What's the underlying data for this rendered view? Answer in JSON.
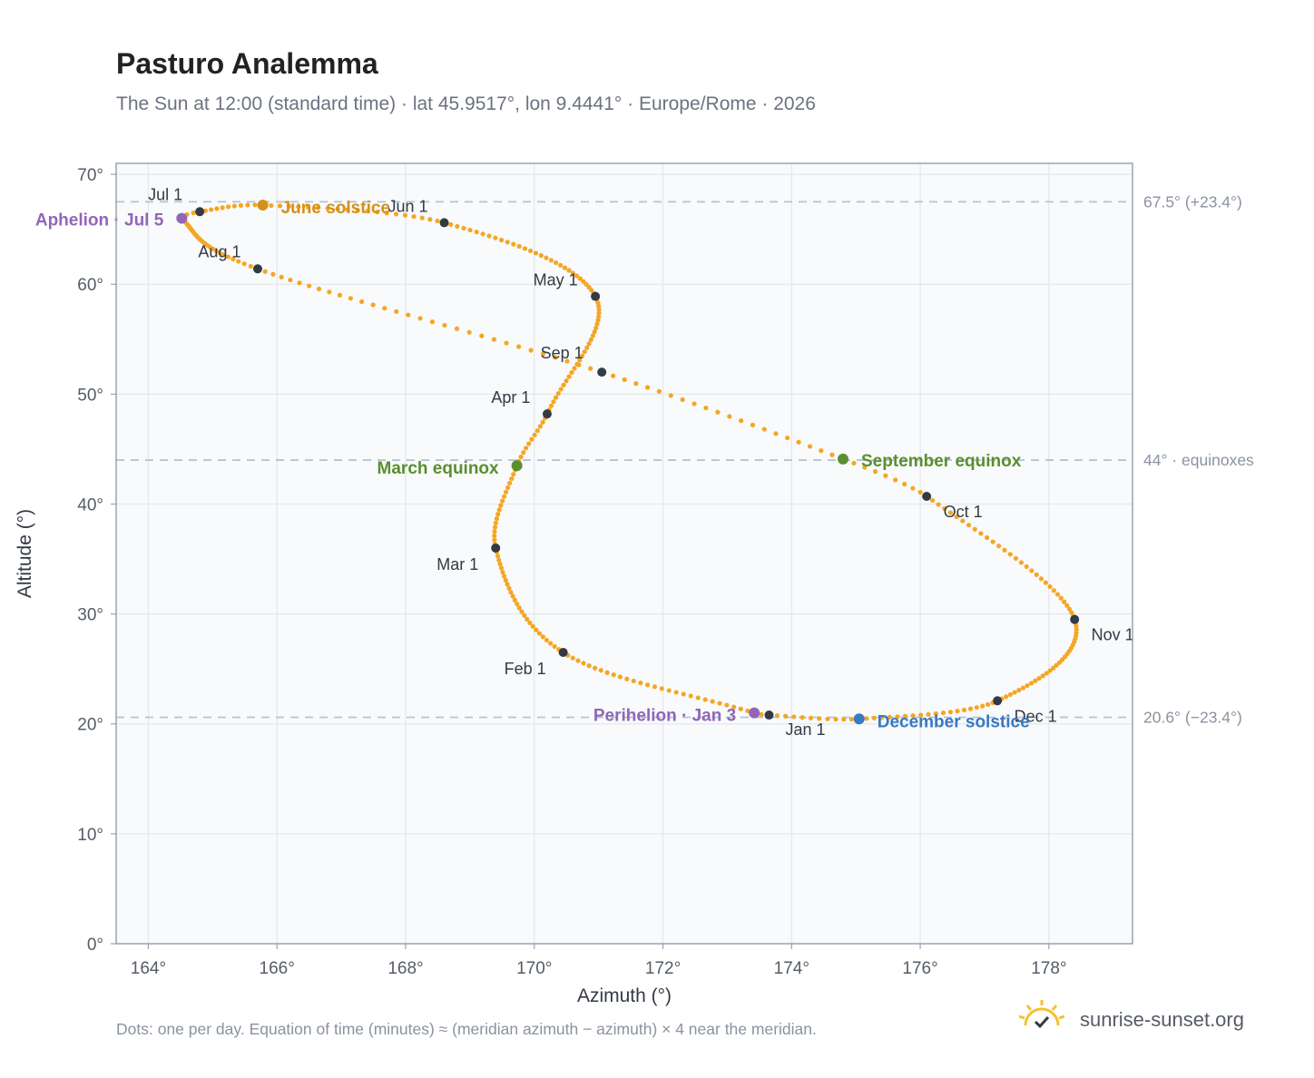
{
  "header": {
    "title": "Pasturo Analemma",
    "subtitle": "The Sun at 12:00 (standard time) · lat 45.9517°, lon 9.4441° · Europe/Rome · 2026"
  },
  "footer": {
    "note": "Dots: one per day. Equation of time (minutes) ≈ (meridian azimuth − azimuth) × 4 near the meridian.",
    "brand": "sunrise-sunset.org",
    "brand_icon": "sun-check-icon"
  },
  "colors": {
    "curve": "#f5a623",
    "month_marker": "#333a44",
    "june_solstice": "#d4901a",
    "december_solstice": "#3a78c0",
    "equinox": "#5a8f2e",
    "apsis": "#9166b8",
    "reference_line": "#b7c3d0",
    "plot_background": "#f8fafc"
  },
  "chart_data": {
    "type": "scatter",
    "title": "Pasturo Analemma",
    "subtitle": "The Sun at 12:00 (standard time) · lat 45.9517°, lon 9.4441° · Europe/Rome · 2026",
    "xlabel": "Azimuth (°)",
    "ylabel": "Altitude (°)",
    "xlim": [
      163.5,
      179.3
    ],
    "ylim": [
      0,
      71
    ],
    "x_ticks": [
      164,
      166,
      168,
      170,
      172,
      174,
      176,
      178
    ],
    "x_tick_labels": [
      "164°",
      "166°",
      "168°",
      "170°",
      "172°",
      "174°",
      "176°",
      "178°"
    ],
    "y_ticks": [
      0,
      10,
      20,
      30,
      40,
      50,
      60,
      70
    ],
    "y_tick_labels": [
      "0°",
      "10°",
      "20°",
      "30°",
      "40°",
      "50°",
      "60°",
      "70°"
    ],
    "grid": true,
    "reference_lines": [
      {
        "y": 67.5,
        "label": "67.5° (+23.4°)"
      },
      {
        "y": 44.0,
        "label": "44° · equinoxes"
      },
      {
        "y": 20.6,
        "label": "20.6° (−23.4°)"
      }
    ],
    "series": [
      {
        "marker": "daily-dot",
        "points": [
          {
            "date": "Jan 1",
            "az": 173.65,
            "alt": 20.8
          },
          {
            "date": "Jan 3",
            "az": 173.42,
            "alt": 21.0
          },
          {
            "date": "Feb 1",
            "az": 170.45,
            "alt": 26.5
          },
          {
            "date": "Mar 1",
            "az": 169.4,
            "alt": 36.0
          },
          {
            "date": "Mar 20",
            "az": 169.73,
            "alt": 43.5
          },
          {
            "date": "Apr 1",
            "az": 170.2,
            "alt": 48.2
          },
          {
            "date": "May 1",
            "az": 170.95,
            "alt": 58.9
          },
          {
            "date": "Jun 1",
            "az": 168.6,
            "alt": 65.6
          },
          {
            "date": "Jun 21",
            "az": 165.78,
            "alt": 67.2
          },
          {
            "date": "Jul 1",
            "az": 164.8,
            "alt": 66.6
          },
          {
            "date": "Jul 5",
            "az": 164.52,
            "alt": 66.0
          },
          {
            "date": "Aug 1",
            "az": 165.7,
            "alt": 61.4
          },
          {
            "date": "Sep 1",
            "az": 171.05,
            "alt": 52.0
          },
          {
            "date": "Sep 22",
            "az": 174.8,
            "alt": 44.1
          },
          {
            "date": "Oct 1",
            "az": 176.1,
            "alt": 40.7
          },
          {
            "date": "Nov 1",
            "az": 178.4,
            "alt": 29.5
          },
          {
            "date": "Dec 1",
            "az": 177.2,
            "alt": 22.1
          },
          {
            "date": "Dec 21",
            "az": 175.05,
            "alt": 20.45
          }
        ]
      }
    ],
    "month_markers": [
      {
        "label": "Jan 1",
        "az": 173.65,
        "alt": 20.8
      },
      {
        "label": "Feb 1",
        "az": 170.45,
        "alt": 26.5
      },
      {
        "label": "Mar 1",
        "az": 169.4,
        "alt": 36.0
      },
      {
        "label": "Apr 1",
        "az": 170.2,
        "alt": 48.2
      },
      {
        "label": "May 1",
        "az": 170.95,
        "alt": 58.9
      },
      {
        "label": "Jun 1",
        "az": 168.6,
        "alt": 65.6
      },
      {
        "label": "Jul 1",
        "az": 164.8,
        "alt": 66.6
      },
      {
        "label": "Aug 1",
        "az": 165.7,
        "alt": 61.4
      },
      {
        "label": "Sep 1",
        "az": 171.05,
        "alt": 52.0
      },
      {
        "label": "Oct 1",
        "az": 176.1,
        "alt": 40.7
      },
      {
        "label": "Nov 1",
        "az": 178.4,
        "alt": 29.5
      },
      {
        "label": "Dec 1",
        "az": 177.2,
        "alt": 22.1
      }
    ],
    "events": [
      {
        "label": "June solstice",
        "az": 165.78,
        "alt": 67.2,
        "color": "#d4901a"
      },
      {
        "label": "December solstice",
        "az": 175.05,
        "alt": 20.45,
        "color": "#3a78c0"
      },
      {
        "label": "March equinox",
        "az": 169.73,
        "alt": 43.5,
        "color": "#5a8f2e"
      },
      {
        "label": "September equinox",
        "az": 174.8,
        "alt": 44.1,
        "color": "#5a8f2e"
      },
      {
        "label": "Aphelion · Jul 5",
        "az": 164.52,
        "alt": 66.0,
        "color": "#9166b8"
      },
      {
        "label": "Perihelion · Jan 3",
        "az": 173.42,
        "alt": 21.0,
        "color": "#9166b8"
      }
    ]
  }
}
